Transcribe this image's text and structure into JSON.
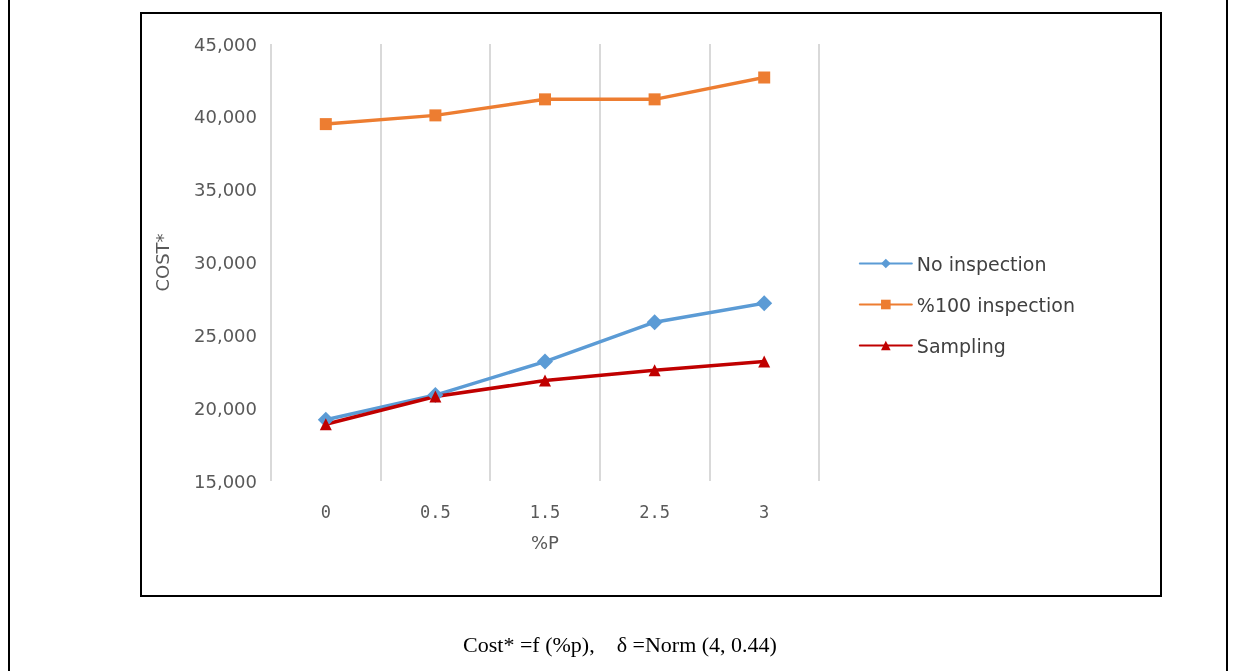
{
  "chart_data": {
    "type": "line",
    "xlabel": "%P",
    "ylabel": "COST*",
    "categories": [
      "0",
      "0.5",
      "1.5",
      "2.5",
      "3"
    ],
    "series": [
      {
        "name": "No inspection",
        "color": "#5b9bd5",
        "marker": "diamond",
        "values": [
          19200,
          20900,
          23200,
          25900,
          27200
        ]
      },
      {
        "name": "%100 inspection",
        "color": "#ed7d31",
        "marker": "square",
        "values": [
          39500,
          40100,
          41200,
          41200,
          42700
        ]
      },
      {
        "name": "Sampling",
        "color": "#c00000",
        "marker": "triangle",
        "values": [
          18900,
          20800,
          21900,
          22600,
          23200
        ]
      }
    ],
    "ylim": [
      15000,
      45000
    ],
    "yticks": [
      {
        "value": 15000,
        "label": "15,000"
      },
      {
        "value": 20000,
        "label": "20,000"
      },
      {
        "value": 25000,
        "label": "25,000"
      },
      {
        "value": 30000,
        "label": "30,000"
      },
      {
        "value": 35000,
        "label": "35,000"
      },
      {
        "value": 40000,
        "label": "40,000"
      },
      {
        "value": 45000,
        "label": "45,000"
      }
    ],
    "grid": "x",
    "legend": "right",
    "line_style": "solid",
    "annotations": [
      "Cost* =f (%p),    δ =Norm (4, 0.44)"
    ]
  }
}
